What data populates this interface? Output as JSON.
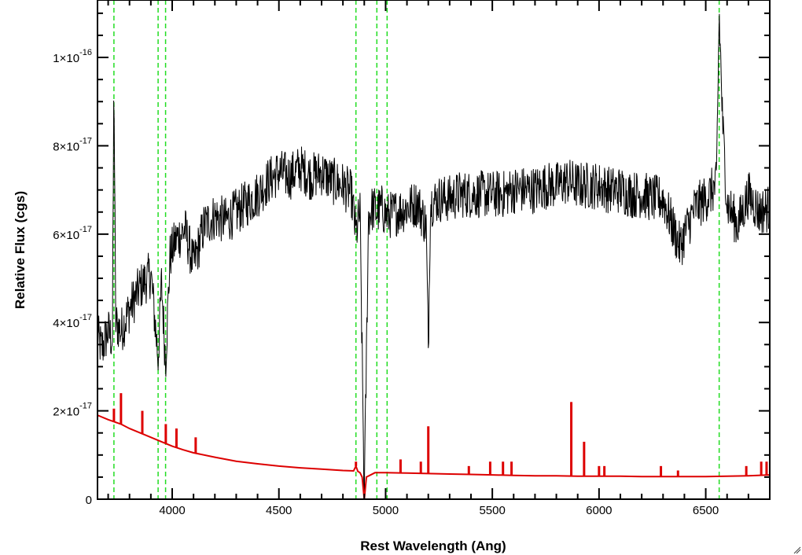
{
  "chart_data": {
    "type": "line",
    "title": "",
    "xlabel": "Rest Wavelength (Ang)",
    "ylabel": "Relative Flux (cgs)",
    "xlim": [
      3650,
      6800
    ],
    "ylim": [
      0,
      1.13e-16
    ],
    "grid": false,
    "x_ticks": [
      {
        "value": 4000,
        "label": "4000"
      },
      {
        "value": 4500,
        "label": "4500"
      },
      {
        "value": 5000,
        "label": "5000"
      },
      {
        "value": 5500,
        "label": "5500"
      },
      {
        "value": 6000,
        "label": "6000"
      },
      {
        "value": 6500,
        "label": "6500"
      }
    ],
    "y_ticks": [
      {
        "value": 0,
        "mantissa": "0",
        "exponent": ""
      },
      {
        "value": 2e-17,
        "mantissa": "2×10",
        "exponent": "-17"
      },
      {
        "value": 4e-17,
        "mantissa": "4×10",
        "exponent": "-17"
      },
      {
        "value": 6e-17,
        "mantissa": "6×10",
        "exponent": "-17"
      },
      {
        "value": 8e-17,
        "mantissa": "8×10",
        "exponent": "-17"
      },
      {
        "value": 1e-16,
        "mantissa": "1×10",
        "exponent": "-16"
      }
    ],
    "vlines": [
      3727,
      3934,
      3969,
      4861,
      4959,
      5007,
      6563
    ],
    "series": [
      {
        "color": "#000000",
        "style": "noisy",
        "x": [
          3650,
          3670,
          3700,
          3720,
          3727,
          3735,
          3760,
          3800,
          3850,
          3900,
          3934,
          3950,
          3969,
          3990,
          4020,
          4060,
          4100,
          4150,
          4200,
          4250,
          4300,
          4350,
          4400,
          4450,
          4500,
          4550,
          4600,
          4650,
          4700,
          4750,
          4800,
          4840,
          4861,
          4880,
          4900,
          4920,
          4940,
          4959,
          4980,
          5007,
          5050,
          5100,
          5150,
          5190,
          5200,
          5210,
          5250,
          5300,
          5350,
          5400,
          5450,
          5500,
          5550,
          5600,
          5650,
          5700,
          5750,
          5800,
          5850,
          5900,
          5950,
          6000,
          6050,
          6100,
          6150,
          6200,
          6250,
          6300,
          6350,
          6380,
          6400,
          6450,
          6500,
          6550,
          6563,
          6580,
          6600,
          6650,
          6700,
          6750,
          6800
        ],
        "y": [
          3.7e-17,
          3.4e-17,
          3.8e-17,
          3.6e-17,
          9.6e-17,
          4e-17,
          3.8e-17,
          4.3e-17,
          4.8e-17,
          5.1e-17,
          3.2e-17,
          4.9e-17,
          3.1e-17,
          5.5e-17,
          5.9e-17,
          6.1e-17,
          5.3e-17,
          6.2e-17,
          6.4e-17,
          6.3e-17,
          6.5e-17,
          6.7e-17,
          6.9e-17,
          7.2e-17,
          7.4e-17,
          7.3e-17,
          7.5e-17,
          7.3e-17,
          7.4e-17,
          7.2e-17,
          7.1e-17,
          6.9e-17,
          6e-17,
          6.5e-17,
          0.0,
          6.4e-17,
          6.6e-17,
          6.5e-17,
          6.6e-17,
          6.4e-17,
          6.5e-17,
          6.6e-17,
          6.7e-17,
          6.2e-17,
          3.4e-17,
          6.7e-17,
          6.8e-17,
          6.8e-17,
          6.9e-17,
          6.9e-17,
          6.9e-17,
          6.9e-17,
          6.9e-17,
          7e-17,
          7e-17,
          7e-17,
          7.1e-17,
          7.1e-17,
          7.2e-17,
          7.1e-17,
          7.1e-17,
          7.1e-17,
          7e-17,
          7e-17,
          6.9e-17,
          6.9e-17,
          6.8e-17,
          6.8e-17,
          6.1e-17,
          5.7e-17,
          6e-17,
          6.6e-17,
          6.8e-17,
          7.1e-17,
          1.1e-16,
          8.4e-17,
          6.7e-17,
          6.2e-17,
          6.9e-17,
          6.5e-17,
          6.6e-17
        ]
      },
      {
        "color": "#dd0000",
        "style": "smooth",
        "x": [
          3650,
          3700,
          3760,
          3800,
          3850,
          3900,
          3950,
          4000,
          4050,
          4100,
          4200,
          4300,
          4400,
          4500,
          4600,
          4700,
          4800,
          4850,
          4861,
          4870,
          4880,
          4890,
          4900,
          4910,
          4950,
          5000,
          5100,
          5200,
          5300,
          5400,
          5500,
          5600,
          5700,
          5800,
          5900,
          6000,
          6100,
          6200,
          6300,
          6400,
          6500,
          6600,
          6700,
          6800
        ],
        "y": [
          1.9e-17,
          1.8e-17,
          1.7e-17,
          1.6e-17,
          1.5e-17,
          1.4e-17,
          1.3e-17,
          1.2e-17,
          1.12e-17,
          1.05e-17,
          9.5e-18,
          8.6e-18,
          8e-18,
          7.5e-18,
          7.1e-18,
          6.8e-18,
          6.5e-18,
          6.4e-18,
          7.5e-18,
          6.3e-18,
          6e-18,
          5e-18,
          0.0,
          5e-18,
          6e-18,
          6e-18,
          5.9e-18,
          5.8e-18,
          5.7e-18,
          5.6e-18,
          5.5e-18,
          5.4e-18,
          5.3e-18,
          5.3e-18,
          5.2e-18,
          5.2e-18,
          5.2e-18,
          5.1e-18,
          5.1e-18,
          5.1e-18,
          5.1e-18,
          5.2e-18,
          5.3e-18,
          5.5e-18
        ]
      }
    ],
    "emission_lines": [
      {
        "x": 3727,
        "peak": 2.05e-17
      },
      {
        "x": 3760,
        "peak": 2.4e-17
      },
      {
        "x": 3860,
        "peak": 2e-17
      },
      {
        "x": 3970,
        "peak": 1.7e-17
      },
      {
        "x": 4020,
        "peak": 1.6e-17
      },
      {
        "x": 4110,
        "peak": 1.4e-17
      },
      {
        "x": 4861,
        "peak": 8.5e-18
      },
      {
        "x": 5070,
        "peak": 9e-18
      },
      {
        "x": 5165,
        "peak": 8.5e-18
      },
      {
        "x": 5200,
        "peak": 1.65e-17
      },
      {
        "x": 5390,
        "peak": 7.5e-18
      },
      {
        "x": 5490,
        "peak": 8.5e-18
      },
      {
        "x": 5550,
        "peak": 8.5e-18
      },
      {
        "x": 5590,
        "peak": 8.5e-18
      },
      {
        "x": 5870,
        "peak": 2.2e-17
      },
      {
        "x": 5930,
        "peak": 1.3e-17
      },
      {
        "x": 6000,
        "peak": 7.5e-18
      },
      {
        "x": 6025,
        "peak": 7.5e-18
      },
      {
        "x": 6290,
        "peak": 7.5e-18
      },
      {
        "x": 6370,
        "peak": 6.5e-18
      },
      {
        "x": 6690,
        "peak": 7.5e-18
      },
      {
        "x": 6760,
        "peak": 8.5e-18
      },
      {
        "x": 6785,
        "peak": 8.5e-18
      }
    ]
  }
}
